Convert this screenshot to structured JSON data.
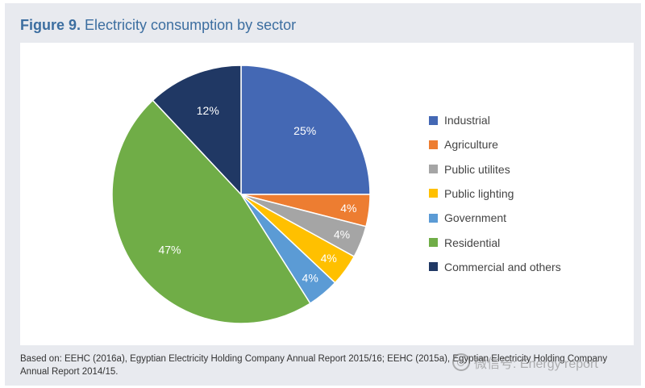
{
  "figure": {
    "label": "Figure 9.",
    "title": "Electricity consumption by sector"
  },
  "chart_data": {
    "type": "pie",
    "title": "Figure 9. Electricity consumption by sector",
    "unit": "%",
    "legend_position": "right",
    "slices": [
      {
        "label": "Industrial",
        "value": 25,
        "display": "25%",
        "color": "#4468b4"
      },
      {
        "label": "Agriculture",
        "value": 4,
        "display": "4%",
        "color": "#ed7d31"
      },
      {
        "label": "Public utilites",
        "value": 4,
        "display": "4%",
        "color": "#a5a5a5"
      },
      {
        "label": "Public lighting",
        "value": 4,
        "display": "4%",
        "color": "#ffc000"
      },
      {
        "label": "Government",
        "value": 4,
        "display": "4%",
        "color": "#5b9bd5"
      },
      {
        "label": "Residential",
        "value": 47,
        "display": "47%",
        "color": "#70ad47"
      },
      {
        "label": "Commercial and others",
        "value": 12,
        "display": "12%",
        "color": "#203864"
      }
    ]
  },
  "source": {
    "text": "Based on: EEHC (2016a), Egyptian Electricity Holding Company Annual Report 2015/16; EEHC (2015a), Egyptian Electricity Holding Company Annual Report 2014/15."
  },
  "watermark": {
    "text": "微信号: Energy report"
  }
}
